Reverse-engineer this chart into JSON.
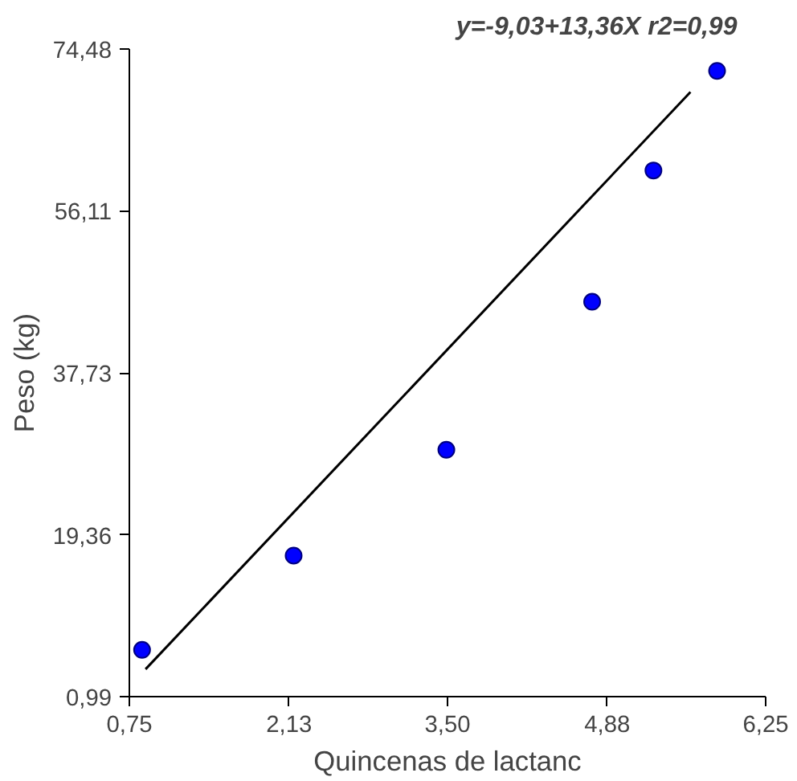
{
  "chart_data": {
    "type": "scatter",
    "title": "y=-9,03+13,36X     r2=0,99",
    "xlabel": "Quincenas de lactanc",
    "ylabel": "Peso (kg)",
    "x": [
      0.86,
      2.17,
      3.49,
      4.75,
      5.28,
      5.83
    ],
    "series": [
      {
        "color": "#0000ff",
        "marker": "circle",
        "values": [
          6.3,
          17.0,
          29.0,
          45.8,
          60.7,
          72.0
        ]
      },
      {
        "type": "line",
        "marker": "none",
        "color": "#000000",
        "x": [
          0.89,
          5.6
        ],
        "values": [
          4.1,
          69.6
        ]
      }
    ],
    "xlim": [
      0.75,
      6.25
    ],
    "ylim": [
      0.99,
      74.48
    ],
    "xticks": [
      {
        "value": 0.75,
        "label": "0,75"
      },
      {
        "value": 2.13,
        "label": "2,13"
      },
      {
        "value": 3.5,
        "label": "3,50"
      },
      {
        "value": 4.88,
        "label": "4,88"
      },
      {
        "value": 6.25,
        "label": "6,25"
      }
    ],
    "yticks": [
      {
        "value": 0.99,
        "label": "0,99"
      },
      {
        "value": 19.36,
        "label": "19,36"
      },
      {
        "value": 37.73,
        "label": "37,73"
      },
      {
        "value": 56.11,
        "label": "56,11"
      },
      {
        "value": 74.48,
        "label": "74,48"
      }
    ],
    "grid": false
  }
}
